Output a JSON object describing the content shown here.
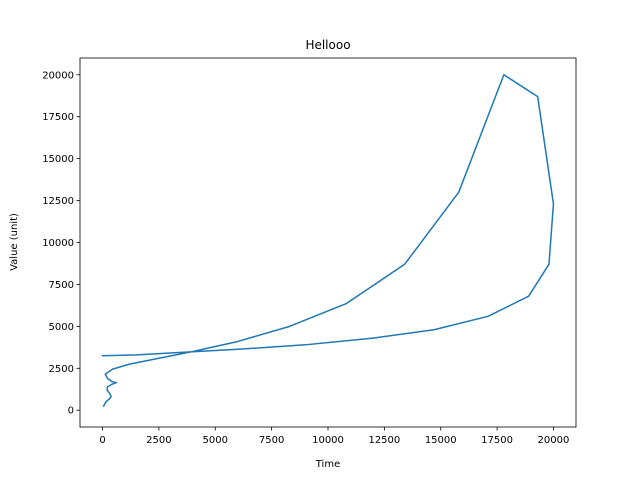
{
  "chart_data": {
    "type": "line",
    "title": "Hellooo",
    "xlabel": "Time",
    "ylabel": "Value (unit)",
    "xlim": [
      -1000,
      21000
    ],
    "ylim": [
      -1000,
      21000
    ],
    "xticks": [
      0,
      2500,
      5000,
      7500,
      10000,
      12500,
      15000,
      17500,
      20000
    ],
    "yticks": [
      0,
      2500,
      5000,
      7500,
      10000,
      12500,
      15000,
      17500,
      20000
    ],
    "xtick_labels": [
      "0",
      "2500",
      "5000",
      "7500",
      "10000",
      "12500",
      "15000",
      "17500",
      "20000"
    ],
    "ytick_labels": [
      "0",
      "2500",
      "5000",
      "7500",
      "10000",
      "12500",
      "15000",
      "17500",
      "20000"
    ],
    "grid": false,
    "series": [
      {
        "color": "#1f77b4",
        "x": [
          50,
          150,
          280,
          380,
          320,
          200,
          220,
          420,
          620,
          420,
          220,
          120,
          450,
          1200,
          2500,
          4000,
          6000,
          8300,
          10800,
          13400,
          15800,
          17800,
          19300,
          20000,
          19800,
          18900,
          17100,
          14700,
          12000,
          9000,
          6200,
          3500,
          1500,
          0
        ],
        "y": [
          250,
          500,
          650,
          800,
          1000,
          1200,
          1400,
          1550,
          1650,
          1700,
          1900,
          2150,
          2450,
          2750,
          3100,
          3500,
          4100,
          5000,
          6350,
          8700,
          13000,
          20000,
          18700,
          12300,
          8700,
          6800,
          5600,
          4800,
          4300,
          3900,
          3650,
          3450,
          3300,
          3250
        ]
      }
    ]
  }
}
